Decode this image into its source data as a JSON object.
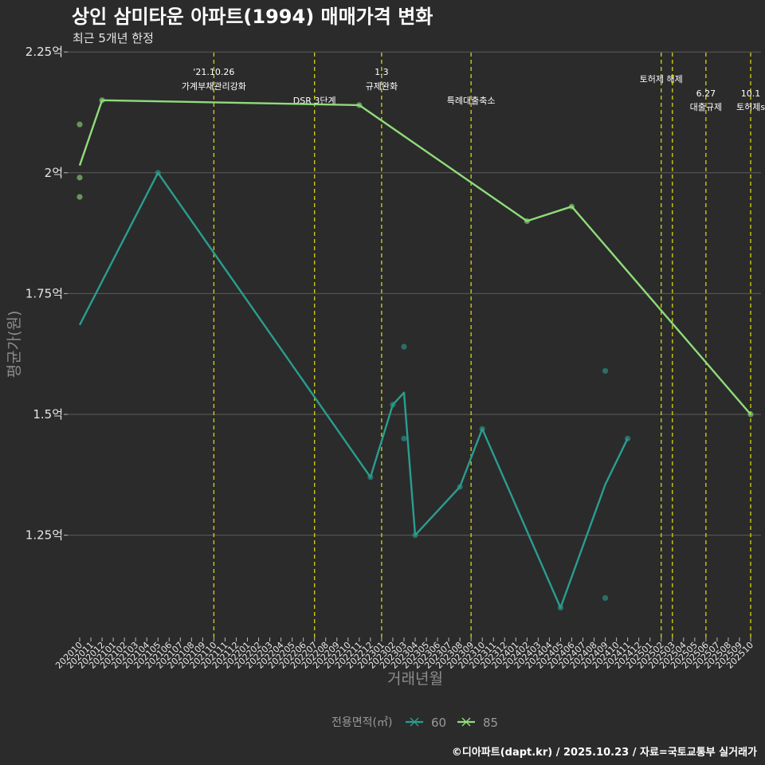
{
  "chart_data": {
    "type": "line",
    "title": "상인 삼미타운 아파트(1994) 매매가격 변화",
    "subtitle": "최근 5개년 한정",
    "xlabel": "거래년월",
    "ylabel": "평균가(원)",
    "ylim": [
      1.04,
      2.25
    ],
    "yticks": [
      {
        "value": 1.25,
        "label": "1.25억"
      },
      {
        "value": 1.5,
        "label": "1.5억"
      },
      {
        "value": 1.75,
        "label": "1.75억"
      },
      {
        "value": 2.0,
        "label": "2억"
      },
      {
        "value": 2.25,
        "label": "2.25억"
      }
    ],
    "categories": [
      "202010",
      "202011",
      "202012",
      "202101",
      "202102",
      "202103",
      "202104",
      "202105",
      "202106",
      "202107",
      "202108",
      "202109",
      "202110",
      "202111",
      "202112",
      "202201",
      "202202",
      "202203",
      "202204",
      "202205",
      "202206",
      "202207",
      "202208",
      "202209",
      "202210",
      "202211",
      "202212",
      "202301",
      "202302",
      "202303",
      "202304",
      "202305",
      "202306",
      "202307",
      "202308",
      "202309",
      "202310",
      "202311",
      "202312",
      "202401",
      "202402",
      "202403",
      "202404",
      "202405",
      "202406",
      "202407",
      "202408",
      "202409",
      "202410",
      "202411",
      "202412",
      "202501",
      "202502",
      "202503",
      "202504",
      "202505",
      "202506",
      "202507",
      "202508",
      "202509",
      "202510"
    ],
    "series": [
      {
        "name": "60",
        "color": "#2a9d8f",
        "line": [
          {
            "x": "202010",
            "y": 1.685
          },
          {
            "x": "202105",
            "y": 2.0
          },
          {
            "x": "202212",
            "y": 1.37
          },
          {
            "x": "202302",
            "y": 1.52
          },
          {
            "x": "202303",
            "y": 1.545
          },
          {
            "x": "202304",
            "y": 1.25
          },
          {
            "x": "202308",
            "y": 1.35
          },
          {
            "x": "202310",
            "y": 1.47
          },
          {
            "x": "202405",
            "y": 1.1
          },
          {
            "x": "202409",
            "y": 1.355
          },
          {
            "x": "202411",
            "y": 1.45
          }
        ],
        "points": [
          {
            "x": "202105",
            "y": 2.0
          },
          {
            "x": "202212",
            "y": 1.37
          },
          {
            "x": "202302",
            "y": 1.52
          },
          {
            "x": "202303",
            "y": 1.64
          },
          {
            "x": "202303",
            "y": 1.45
          },
          {
            "x": "202304",
            "y": 1.25
          },
          {
            "x": "202308",
            "y": 1.35
          },
          {
            "x": "202310",
            "y": 1.47
          },
          {
            "x": "202405",
            "y": 1.1
          },
          {
            "x": "202409",
            "y": 1.59
          },
          {
            "x": "202409",
            "y": 1.12
          },
          {
            "x": "202411",
            "y": 1.45
          }
        ]
      },
      {
        "name": "85",
        "color": "#8fdc7a",
        "line": [
          {
            "x": "202010",
            "y": 2.015
          },
          {
            "x": "202012",
            "y": 2.15
          },
          {
            "x": "202211",
            "y": 2.14
          },
          {
            "x": "202402",
            "y": 1.9
          },
          {
            "x": "202406",
            "y": 1.93
          },
          {
            "x": "202510",
            "y": 1.5
          }
        ],
        "points": [
          {
            "x": "202010",
            "y": 2.1
          },
          {
            "x": "202010",
            "y": 1.99
          },
          {
            "x": "202010",
            "y": 1.95
          },
          {
            "x": "202012",
            "y": 2.15
          },
          {
            "x": "202211",
            "y": 2.14
          },
          {
            "x": "202402",
            "y": 1.9
          },
          {
            "x": "202406",
            "y": 1.93
          },
          {
            "x": "202510",
            "y": 1.5
          }
        ]
      }
    ],
    "events": [
      {
        "x": "202110",
        "line1": "'21.10.26",
        "line2": "가계부채관리강화",
        "row": "top"
      },
      {
        "x": "202207",
        "line1": "",
        "line2": "DSR 3단계",
        "row": "low"
      },
      {
        "x": "202301",
        "line1": "1.3",
        "line2": "규제완화",
        "row": "top"
      },
      {
        "x": "202309",
        "line1": "",
        "line2": "특례대출축소",
        "row": "low"
      },
      {
        "x": "202502",
        "line1": "",
        "line2": "토허제 해제",
        "row": "mid"
      },
      {
        "x": "202503",
        "line1": "",
        "line2": "",
        "row": "none"
      },
      {
        "x": "202506",
        "line1": "6.27",
        "line2": "대출규제",
        "row": "right"
      },
      {
        "x": "202510",
        "line1": "10.1",
        "line2": "토허제s",
        "row": "right"
      }
    ],
    "legend": {
      "title": "전용면적(㎡)",
      "position": "bottom",
      "entries": [
        "60",
        "85"
      ]
    },
    "caption": "©디아파트(dapt.kr) / 2025.10.23 / 자료=국토교통부 실거래가"
  }
}
